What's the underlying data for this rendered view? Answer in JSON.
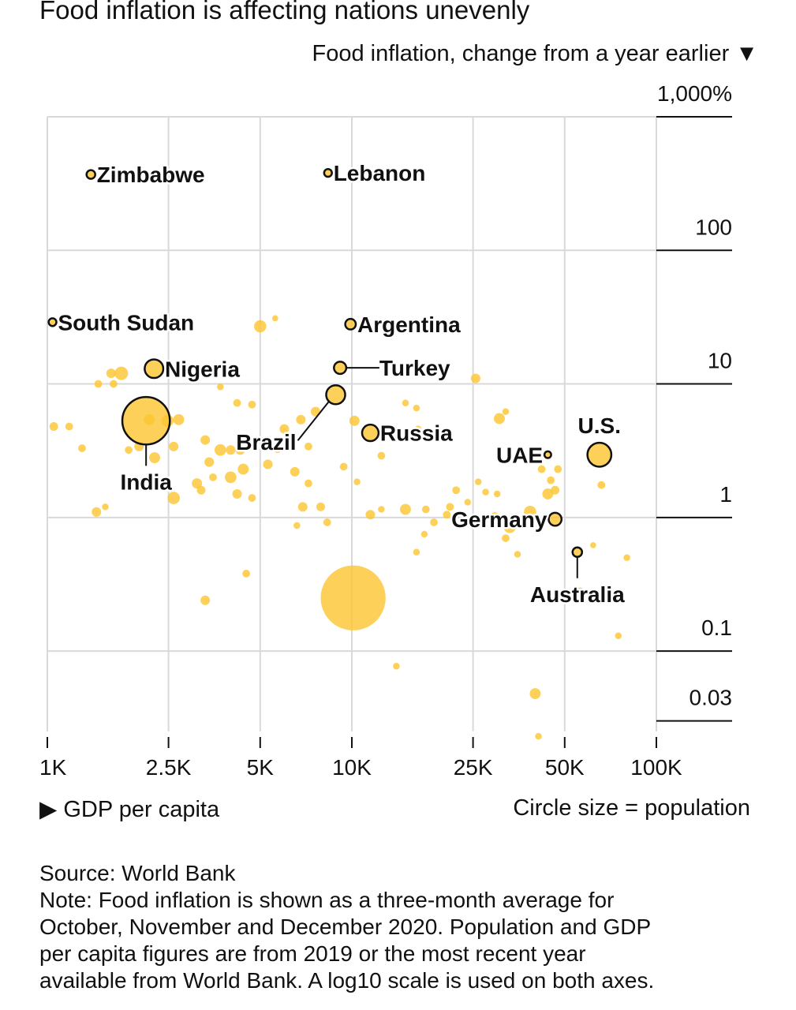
{
  "chart_data": {
    "type": "scatter",
    "title": "Food inflation is affecting nations unevenly",
    "ylabel": "Food inflation, change from a year earlier ▼",
    "xlabel": "▶ GDP per capita",
    "size_legend": "Circle size = population",
    "x_scale": "log10",
    "y_scale": "log10",
    "xlim": [
      1000,
      100000
    ],
    "ylim": [
      0.025,
      1000
    ],
    "x_ticks": [
      {
        "value": 1000,
        "label": "1K"
      },
      {
        "value": 2500,
        "label": "2.5K"
      },
      {
        "value": 5000,
        "label": "5K"
      },
      {
        "value": 10000,
        "label": "10K"
      },
      {
        "value": 25000,
        "label": "25K"
      },
      {
        "value": 50000,
        "label": "50K"
      },
      {
        "value": 100000,
        "label": "100K"
      }
    ],
    "y_ticks": [
      {
        "value": 1000,
        "label": "1,000%"
      },
      {
        "value": 100,
        "label": "100"
      },
      {
        "value": 10,
        "label": "10"
      },
      {
        "value": 1,
        "label": "1"
      },
      {
        "value": 0.1,
        "label": "0.1"
      },
      {
        "value": 0.03,
        "label": "0.03"
      }
    ],
    "grid": true,
    "labeled_points": [
      {
        "name": "Zimbabwe",
        "x": 1390,
        "y": 370,
        "size": 0.25,
        "label_side": "right"
      },
      {
        "name": "Lebanon",
        "x": 8350,
        "y": 380,
        "size": 0.2,
        "label_side": "right"
      },
      {
        "name": "South Sudan",
        "x": 1040,
        "y": 29,
        "size": 0.2,
        "label_side": "right"
      },
      {
        "name": "Argentina",
        "x": 9900,
        "y": 28,
        "size": 0.37,
        "label_side": "right"
      },
      {
        "name": "Nigeria",
        "x": 2240,
        "y": 13,
        "size": 1.15,
        "label_side": "right"
      },
      {
        "name": "Turkey",
        "x": 9150,
        "y": 13.2,
        "size": 0.5,
        "label_side": "leader-right"
      },
      {
        "name": "Brazil",
        "x": 8850,
        "y": 8.3,
        "size": 1.2,
        "label_side": "leader-left"
      },
      {
        "name": "India",
        "x": 2110,
        "y": 5.3,
        "size": 7.5,
        "label_side": "leader-below"
      },
      {
        "name": "Russia",
        "x": 11500,
        "y": 4.3,
        "size": 0.9,
        "label_side": "right"
      },
      {
        "name": "UAE",
        "x": 44000,
        "y": 2.95,
        "size": 0.15,
        "label_side": "left"
      },
      {
        "name": "U.S.",
        "x": 65000,
        "y": 2.95,
        "size": 1.9,
        "label_side": "above"
      },
      {
        "name": "Germany",
        "x": 46500,
        "y": 0.97,
        "size": 0.55,
        "label_side": "left"
      },
      {
        "name": "Australia",
        "x": 55000,
        "y": 0.55,
        "size": 0.3,
        "label_side": "leader-below"
      }
    ],
    "other_points": [
      {
        "x": 5000,
        "y": 27,
        "size": 0.5
      },
      {
        "x": 5600,
        "y": 31,
        "size": 0.12
      },
      {
        "x": 1750,
        "y": 12,
        "size": 0.6
      },
      {
        "x": 1620,
        "y": 12,
        "size": 0.3
      },
      {
        "x": 1470,
        "y": 10,
        "size": 0.2
      },
      {
        "x": 1650,
        "y": 10,
        "size": 0.2
      },
      {
        "x": 3700,
        "y": 9.5,
        "size": 0.15
      },
      {
        "x": 4200,
        "y": 7.2,
        "size": 0.2
      },
      {
        "x": 4700,
        "y": 7,
        "size": 0.2
      },
      {
        "x": 2480,
        "y": 5.3,
        "size": 0.5
      },
      {
        "x": 2160,
        "y": 5.4,
        "size": 0.4
      },
      {
        "x": 1050,
        "y": 4.8,
        "size": 0.25
      },
      {
        "x": 1180,
        "y": 4.8,
        "size": 0.2
      },
      {
        "x": 2700,
        "y": 5.4,
        "size": 0.4
      },
      {
        "x": 1850,
        "y": 3.2,
        "size": 0.2
      },
      {
        "x": 1300,
        "y": 3.3,
        "size": 0.2
      },
      {
        "x": 2000,
        "y": 3.4,
        "size": 0.3
      },
      {
        "x": 2250,
        "y": 2.8,
        "size": 0.4
      },
      {
        "x": 2600,
        "y": 3.4,
        "size": 0.3
      },
      {
        "x": 3300,
        "y": 3.8,
        "size": 0.3
      },
      {
        "x": 3700,
        "y": 3.2,
        "size": 0.45
      },
      {
        "x": 4000,
        "y": 3.2,
        "size": 0.3
      },
      {
        "x": 4300,
        "y": 3.2,
        "size": 0.3
      },
      {
        "x": 4400,
        "y": 2.3,
        "size": 0.4
      },
      {
        "x": 4000,
        "y": 2,
        "size": 0.45
      },
      {
        "x": 3400,
        "y": 2.6,
        "size": 0.3
      },
      {
        "x": 3500,
        "y": 2,
        "size": 0.2
      },
      {
        "x": 3100,
        "y": 1.8,
        "size": 0.35
      },
      {
        "x": 3200,
        "y": 1.6,
        "size": 0.25
      },
      {
        "x": 4200,
        "y": 1.5,
        "size": 0.3
      },
      {
        "x": 4700,
        "y": 1.4,
        "size": 0.2
      },
      {
        "x": 1450,
        "y": 1.1,
        "size": 0.3
      },
      {
        "x": 1550,
        "y": 1.2,
        "size": 0.15
      },
      {
        "x": 2600,
        "y": 1.4,
        "size": 0.5
      },
      {
        "x": 5300,
        "y": 2.5,
        "size": 0.3
      },
      {
        "x": 5700,
        "y": 3.3,
        "size": 0.3
      },
      {
        "x": 6200,
        "y": 3.8,
        "size": 0.3
      },
      {
        "x": 6000,
        "y": 4.6,
        "size": 0.3
      },
      {
        "x": 6800,
        "y": 5.4,
        "size": 0.3
      },
      {
        "x": 7600,
        "y": 6.2,
        "size": 0.3
      },
      {
        "x": 7200,
        "y": 3.4,
        "size": 0.2
      },
      {
        "x": 6500,
        "y": 2.2,
        "size": 0.3
      },
      {
        "x": 7200,
        "y": 1.8,
        "size": 0.2
      },
      {
        "x": 6900,
        "y": 1.2,
        "size": 0.3
      },
      {
        "x": 7900,
        "y": 1.2,
        "size": 0.25
      },
      {
        "x": 8300,
        "y": 0.92,
        "size": 0.2
      },
      {
        "x": 9400,
        "y": 2.4,
        "size": 0.2
      },
      {
        "x": 10400,
        "y": 1.85,
        "size": 0.15
      },
      {
        "x": 11500,
        "y": 1.05,
        "size": 0.3
      },
      {
        "x": 12500,
        "y": 1.15,
        "size": 0.15
      },
      {
        "x": 10200,
        "y": 5.3,
        "size": 0.35
      },
      {
        "x": 12500,
        "y": 2.9,
        "size": 0.2
      },
      {
        "x": 15000,
        "y": 7.2,
        "size": 0.15
      },
      {
        "x": 16300,
        "y": 6.6,
        "size": 0.15
      },
      {
        "x": 16500,
        "y": 4.6,
        "size": 0.15
      },
      {
        "x": 15000,
        "y": 1.15,
        "size": 0.4
      },
      {
        "x": 17500,
        "y": 1.15,
        "size": 0.2
      },
      {
        "x": 18600,
        "y": 0.92,
        "size": 0.2
      },
      {
        "x": 17300,
        "y": 0.75,
        "size": 0.15
      },
      {
        "x": 16300,
        "y": 0.55,
        "size": 0.15
      },
      {
        "x": 20500,
        "y": 1.05,
        "size": 0.2
      },
      {
        "x": 21000,
        "y": 1.2,
        "size": 0.2
      },
      {
        "x": 22000,
        "y": 1.6,
        "size": 0.2
      },
      {
        "x": 24000,
        "y": 1.3,
        "size": 0.15
      },
      {
        "x": 25500,
        "y": 11,
        "size": 0.3
      },
      {
        "x": 30500,
        "y": 5.5,
        "size": 0.4
      },
      {
        "x": 32000,
        "y": 6.2,
        "size": 0.15
      },
      {
        "x": 26000,
        "y": 1.85,
        "size": 0.15
      },
      {
        "x": 27500,
        "y": 1.55,
        "size": 0.15
      },
      {
        "x": 30000,
        "y": 1.5,
        "size": 0.15
      },
      {
        "x": 29500,
        "y": 1.0,
        "size": 0.35
      },
      {
        "x": 33000,
        "y": 0.85,
        "size": 0.5
      },
      {
        "x": 32000,
        "y": 0.7,
        "size": 0.2
      },
      {
        "x": 38500,
        "y": 1.1,
        "size": 0.5
      },
      {
        "x": 44000,
        "y": 1.5,
        "size": 0.4
      },
      {
        "x": 46500,
        "y": 1.6,
        "size": 0.25
      },
      {
        "x": 42000,
        "y": 2.3,
        "size": 0.2
      },
      {
        "x": 45000,
        "y": 1.9,
        "size": 0.2
      },
      {
        "x": 47500,
        "y": 2.3,
        "size": 0.2
      },
      {
        "x": 35000,
        "y": 0.53,
        "size": 0.15
      },
      {
        "x": 56000,
        "y": 0.28,
        "size": 0.2
      },
      {
        "x": 66000,
        "y": 1.75,
        "size": 0.2
      },
      {
        "x": 62000,
        "y": 0.62,
        "size": 0.12
      },
      {
        "x": 80000,
        "y": 0.5,
        "size": 0.15
      },
      {
        "x": 75000,
        "y": 0.13,
        "size": 0.15
      },
      {
        "x": 14000,
        "y": 0.077,
        "size": 0.15
      },
      {
        "x": 40000,
        "y": 0.048,
        "size": 0.4
      },
      {
        "x": 10100,
        "y": 0.25,
        "size": 14
      },
      {
        "x": 3300,
        "y": 0.24,
        "size": 0.3
      },
      {
        "x": 4500,
        "y": 0.38,
        "size": 0.2
      },
      {
        "x": 6600,
        "y": 0.87,
        "size": 0.15
      },
      {
        "x": 41000,
        "y": 0.023,
        "size": 0.15
      }
    ]
  },
  "notes": {
    "source": "Source: World Bank",
    "note_lines": [
      "Note: Food inflation is shown as a three-month average for",
      "October, November and December 2020. Population and GDP",
      "per capita figures are from 2019 or the most recent year",
      "available from World Bank. A log10 scale is used on both axes."
    ]
  },
  "colors": {
    "bubble_fill": "#fdc62f",
    "bubble_fill_opacity": 0.8,
    "labeled_outline": "#111111",
    "grid": "#d9d9d9",
    "axis": "#111111",
    "background": "#ffffff"
  }
}
